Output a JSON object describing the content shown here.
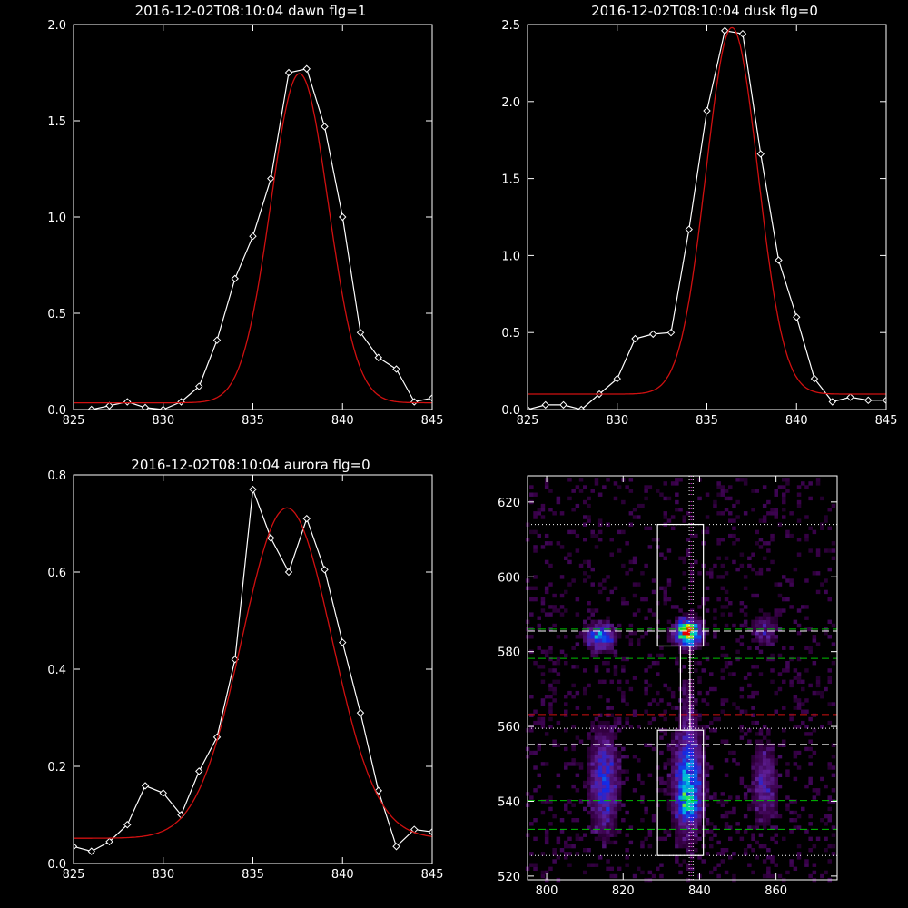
{
  "chart_data": [
    {
      "type": "line",
      "title": "2016-12-02T08:10:04 dawn flg=1",
      "xlim": [
        825,
        845
      ],
      "ylim": [
        0,
        2.0
      ],
      "x_ticks": [
        825,
        830,
        835,
        840,
        845
      ],
      "y_ticks": [
        0.0,
        0.5,
        1.0,
        1.5,
        2.0
      ],
      "x_tick_labels": [
        "825",
        "830",
        "835",
        "840",
        "845"
      ],
      "y_tick_labels": [
        "0.0",
        "0.5",
        "1.0",
        "1.5",
        "2.0"
      ],
      "series": [
        {
          "style": "white-diamond-line",
          "color": "#ffffff",
          "x": [
            826,
            827,
            828,
            829,
            830,
            831,
            832,
            833,
            834,
            835,
            836,
            837,
            838,
            839,
            840,
            841,
            842,
            843,
            844,
            845
          ],
          "y": [
            0.0,
            0.02,
            0.04,
            0.01,
            0.0,
            0.04,
            0.12,
            0.36,
            0.68,
            0.9,
            1.2,
            1.75,
            1.77,
            1.47,
            1.0,
            0.4,
            0.27,
            0.21,
            0.04,
            0.06
          ]
        },
        {
          "style": "gaussian-fit",
          "color": "#d01010",
          "gaussian": {
            "amplitude": 1.71,
            "center": 837.6,
            "sigma": 1.6,
            "offset": 0.035
          }
        }
      ]
    },
    {
      "type": "line",
      "title": "2016-12-02T08:10:04 dusk flg=0",
      "xlim": [
        825,
        845
      ],
      "ylim": [
        0,
        2.5
      ],
      "x_ticks": [
        825,
        830,
        835,
        840,
        845
      ],
      "y_ticks": [
        0.0,
        0.5,
        1.0,
        1.5,
        2.0,
        2.5
      ],
      "x_tick_labels": [
        "825",
        "830",
        "835",
        "840",
        "845"
      ],
      "y_tick_labels": [
        "0.0",
        "0.5",
        "1.0",
        "1.5",
        "2.0",
        "2.5"
      ],
      "series": [
        {
          "style": "white-diamond-line",
          "color": "#ffffff",
          "x": [
            825,
            826,
            827,
            828,
            829,
            830,
            831,
            832,
            833,
            834,
            835,
            836,
            837,
            838,
            839,
            840,
            841,
            842,
            843,
            844,
            845
          ],
          "y": [
            0.0,
            0.03,
            0.03,
            0.0,
            0.1,
            0.2,
            0.46,
            0.49,
            0.5,
            1.17,
            1.94,
            2.46,
            2.44,
            1.66,
            0.97,
            0.6,
            0.2,
            0.05,
            0.08,
            0.06,
            0.06
          ]
        },
        {
          "style": "gaussian-fit",
          "color": "#d01010",
          "gaussian": {
            "amplitude": 2.38,
            "center": 836.4,
            "sigma": 1.45,
            "offset": 0.1
          }
        }
      ]
    },
    {
      "type": "line",
      "title": "2016-12-02T08:10:04 aurora flg=0",
      "xlim": [
        825,
        845
      ],
      "ylim": [
        0,
        0.8
      ],
      "x_ticks": [
        825,
        830,
        835,
        840,
        845
      ],
      "y_ticks": [
        0.0,
        0.2,
        0.4,
        0.6,
        0.8
      ],
      "x_tick_labels": [
        "825",
        "830",
        "835",
        "840",
        "845"
      ],
      "y_tick_labels": [
        "0.0",
        "0.2",
        "0.4",
        "0.6",
        "0.8"
      ],
      "series": [
        {
          "style": "white-diamond-line",
          "color": "#ffffff",
          "x": [
            825,
            826,
            827,
            828,
            829,
            830,
            831,
            832,
            833,
            834,
            835,
            836,
            837,
            838,
            839,
            840,
            841,
            842,
            843,
            844,
            845
          ],
          "y": [
            0.035,
            0.025,
            0.045,
            0.08,
            0.16,
            0.145,
            0.1,
            0.19,
            0.26,
            0.42,
            0.77,
            0.67,
            0.6,
            0.71,
            0.605,
            0.455,
            0.31,
            0.15,
            0.035,
            0.07,
            0.065
          ]
        },
        {
          "style": "gaussian-fit",
          "color": "#d01010",
          "gaussian": {
            "amplitude": 0.68,
            "center": 836.9,
            "sigma": 2.5,
            "offset": 0.052
          }
        }
      ]
    },
    {
      "type": "heatmap",
      "title": "",
      "xlim": [
        795,
        876
      ],
      "ylim": [
        519,
        627
      ],
      "x_ticks": [
        800,
        820,
        840,
        860
      ],
      "y_ticks": [
        520,
        540,
        560,
        580,
        600,
        620
      ],
      "x_tick_labels": [
        "800",
        "820",
        "840",
        "860"
      ],
      "y_tick_labels": [
        "520",
        "540",
        "560",
        "580",
        "600",
        "620"
      ],
      "colormap": "rainbow-on-black",
      "blobs": [
        {
          "x": 814,
          "y": 584,
          "sx": 2.5,
          "sy": 2.2,
          "peak": 0.5
        },
        {
          "x": 837,
          "y": 585,
          "sx": 2.2,
          "sy": 2.2,
          "peak": 0.97
        },
        {
          "x": 837,
          "y": 545,
          "sx": 2.5,
          "sy": 9,
          "peak": 0.5
        },
        {
          "x": 837,
          "y": 539,
          "sx": 1.8,
          "sy": 2.5,
          "peak": 0.22
        },
        {
          "x": 815,
          "y": 545,
          "sx": 2.5,
          "sy": 9,
          "peak": 0.35
        },
        {
          "x": 857,
          "y": 545,
          "sx": 2.2,
          "sy": 7,
          "peak": 0.25
        },
        {
          "x": 857,
          "y": 586,
          "sx": 2.5,
          "sy": 3,
          "peak": 0.18
        },
        {
          "x": 837,
          "y": 565,
          "sx": 1.5,
          "sy": 8,
          "peak": 0.1
        }
      ],
      "noise_level": 0.13,
      "boxes": [
        {
          "x0": 829,
          "x1": 841,
          "y0": 581.5,
          "y1": 614,
          "color": "#ffffff"
        },
        {
          "x0": 829,
          "x1": 841,
          "y0": 525.5,
          "y1": 559,
          "color": "#ffffff"
        },
        {
          "x0": 835,
          "x1": 837.5,
          "y0": 559,
          "y1": 581.5,
          "color": "#ffffff"
        }
      ],
      "hlines": [
        {
          "y": 614,
          "color": "#ffffff",
          "style": "dotted"
        },
        {
          "y": 559.5,
          "color": "#ffffff",
          "style": "dotted"
        },
        {
          "y": 525.5,
          "color": "#ffffff",
          "style": "dotted"
        },
        {
          "y": 581.5,
          "color": "#ffffff",
          "style": "dotted"
        },
        {
          "y": 585.5,
          "color": "#ffffff",
          "style": "dashed"
        },
        {
          "y": 555.2,
          "color": "#ffffff",
          "style": "dashed"
        },
        {
          "y": 586,
          "color": "#00c000",
          "style": "dashed"
        },
        {
          "y": 578.2,
          "color": "#00c000",
          "style": "dashed"
        },
        {
          "y": 540.2,
          "color": "#00c000",
          "style": "dashed"
        },
        {
          "y": 532.5,
          "color": "#00c000",
          "style": "dashed"
        },
        {
          "y": 563.2,
          "color": "#d01010",
          "style": "dashed"
        }
      ],
      "vlines": [
        {
          "x": 837.3,
          "color": "#ffffff",
          "style": "dotted"
        },
        {
          "x": 838.3,
          "color": "#ffffff",
          "style": "dotted"
        },
        {
          "x": 837.8,
          "color": "#ff40ff",
          "style": "dotted"
        }
      ]
    }
  ]
}
